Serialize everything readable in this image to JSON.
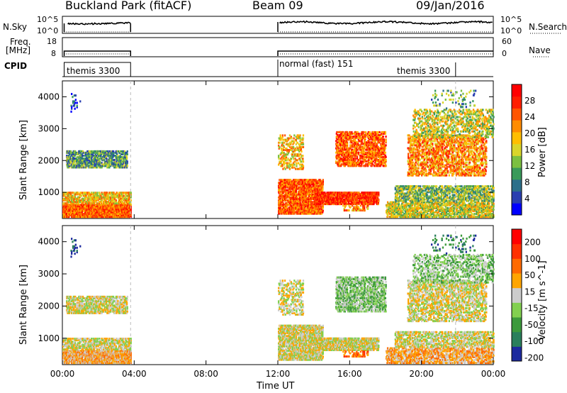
{
  "header": {
    "station": "Buckland Park (fitACF)",
    "beam": "Beam 09",
    "date": "09/Jan/2016"
  },
  "panels": {
    "nsky_label": "N.Sky",
    "nsearch_label": "N.Search",
    "freq_label_1": "Freq.",
    "freq_label_2": "[MHz]",
    "nave_label": "Nave",
    "cpid_label": "CPID",
    "nsky_ticks": [
      "10^5",
      "10^0"
    ],
    "nsearch_ticks": [
      "10^5",
      "10^0"
    ],
    "freq_ticks": [
      "18",
      "8"
    ],
    "nave_ticks": [
      "60",
      "0"
    ],
    "cpid_segments": [
      {
        "label": "themis 3300",
        "start_hr": 0,
        "end_hr": 3.8
      },
      {
        "label": "normal (fast) 151",
        "start_hr": 12,
        "end_hr": 24
      },
      {
        "label": "themis 3300",
        "start_hr": 21.9,
        "end_hr": 24
      }
    ]
  },
  "colors": {
    "power": [
      "#0000ff",
      "#2a3fb0",
      "#2c6f8a",
      "#3a9a5a",
      "#7cc040",
      "#d9d52a",
      "#ffbe00",
      "#ff8c00",
      "#ff5500",
      "#ff1e00",
      "#ff0000"
    ],
    "velocity": [
      "#1c2a9e",
      "#2a7f5c",
      "#3c9a3c",
      "#82d050",
      "#cccccc",
      "#ffa500",
      "#ff6a00",
      "#ff3000",
      "#ff0000"
    ]
  },
  "chart_data": [
    {
      "type": "heatmap",
      "name": "power",
      "ylabel": "Slant Range [km]",
      "xlabel": "Time UT",
      "xlim": [
        0,
        24
      ],
      "ylim": [
        180,
        4500
      ],
      "x_ticks": [
        "00:00",
        "04:00",
        "08:00",
        "12:00",
        "16:00",
        "20:00",
        "00:00"
      ],
      "y_ticks": [
        "1000",
        "2000",
        "3000",
        "4000"
      ],
      "colorbar_title": "Power [dB]",
      "colorbar_ticks": [
        "4",
        "8",
        "12",
        "16",
        "20",
        "24",
        "28"
      ]
    },
    {
      "type": "heatmap",
      "name": "velocity",
      "ylabel": "Slant Range [km]",
      "xlabel": "Time UT",
      "xlim": [
        0,
        24
      ],
      "ylim": [
        180,
        4500
      ],
      "x_ticks": [
        "00:00",
        "04:00",
        "08:00",
        "12:00",
        "16:00",
        "20:00",
        "00:00"
      ],
      "y_ticks": [
        "1000",
        "2000",
        "3000",
        "4000"
      ],
      "colorbar_title": "Velocity [m s^-1]",
      "colorbar_ticks": [
        "200",
        "100",
        "50",
        "15",
        "-15",
        "-50",
        "-100",
        "-200"
      ]
    }
  ]
}
